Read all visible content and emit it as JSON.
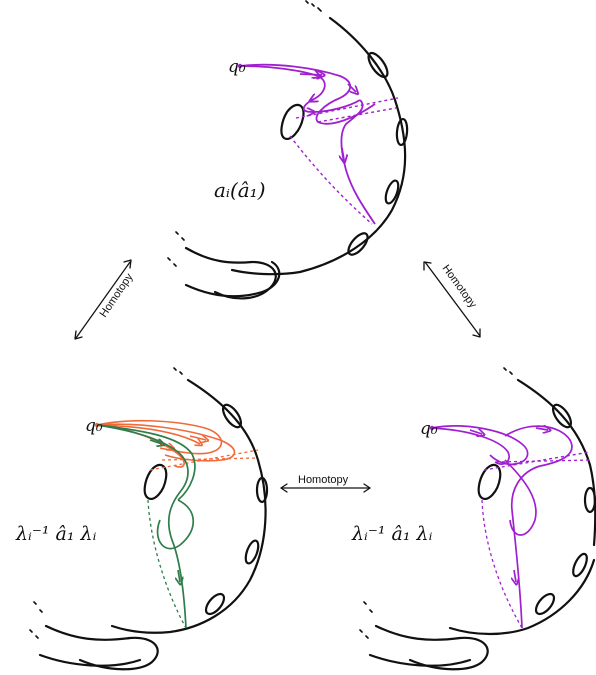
{
  "colors": {
    "ink": "#111111",
    "purple": "#a020d0",
    "orange": "#f06a3a",
    "green": "#2e7d4a"
  },
  "panels": {
    "top": {
      "basepoint": "q₀",
      "path_label": "aᵢ(â₁)"
    },
    "bottom_left": {
      "basepoint": "q₀",
      "path_label": "λᵢ⁻¹ â₁ λᵢ"
    },
    "bottom_right": {
      "basepoint": "q₀",
      "path_label": "λᵢ⁻¹ â₁ λᵢ"
    }
  },
  "arrows": {
    "left": "Homotopy",
    "right": "Homotopy",
    "middle": "Homotopy"
  }
}
